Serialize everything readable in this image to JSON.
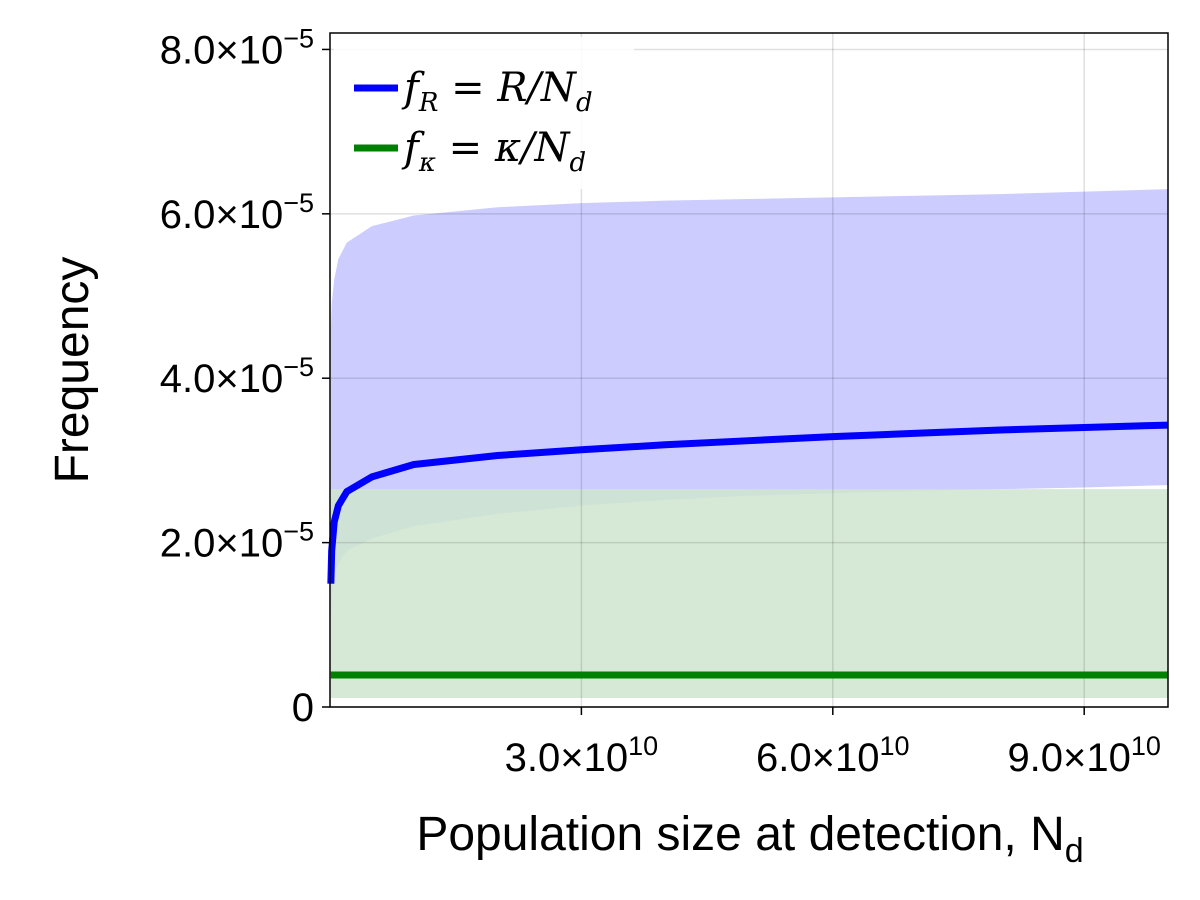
{
  "chart_data": {
    "type": "line",
    "xlabel": "Population size at detection, N",
    "xlabel_sub": "d",
    "ylabel": "Frequency",
    "xlim": [
      0,
      100000000000.0
    ],
    "ylim": [
      0,
      8.2e-05
    ],
    "grid": true,
    "legend_position": "top-left",
    "x_ticks": [
      {
        "value": 30000000000.0,
        "mant": "3.0×10",
        "exp": "10"
      },
      {
        "value": 60000000000.0,
        "mant": "6.0×10",
        "exp": "10"
      },
      {
        "value": 90000000000.0,
        "mant": "9.0×10",
        "exp": "10"
      }
    ],
    "y_ticks": [
      {
        "value": 0,
        "mant": "0",
        "exp": ""
      },
      {
        "value": 2e-05,
        "mant": "2.0×10",
        "exp": "−5"
      },
      {
        "value": 4e-05,
        "mant": "4.0×10",
        "exp": "−5"
      },
      {
        "value": 6e-05,
        "mant": "6.0×10",
        "exp": "−5"
      },
      {
        "value": 8e-05,
        "mant": "8.0×10",
        "exp": "−5"
      }
    ],
    "series": [
      {
        "name": "f_R = R/N_d",
        "label_main": "f",
        "label_sub": "R",
        "label_rest": " = R/N",
        "label_rest_sub": "d",
        "color": "#0000ff",
        "band_color": "#ccccff",
        "x": [
          100000000.0,
          200000000.0,
          500000000.0,
          1000000000.0,
          2000000000.0,
          5000000000.0,
          10000000000.0,
          20000000000.0,
          30000000000.0,
          40000000000.0,
          50000000000.0,
          60000000000.0,
          70000000000.0,
          80000000000.0,
          90000000000.0,
          100000000000.0
        ],
        "values": [
          1.5e-05,
          1.9e-05,
          2.25e-05,
          2.45e-05,
          2.62e-05,
          2.8e-05,
          2.95e-05,
          3.06e-05,
          3.13e-05,
          3.19e-05,
          3.24e-05,
          3.29e-05,
          3.33e-05,
          3.37e-05,
          3.4e-05,
          3.43e-05
        ],
        "lower": [
          1.1e-05,
          1.35e-05,
          1.6e-05,
          1.75e-05,
          1.9e-05,
          2.05e-05,
          2.2e-05,
          2.35e-05,
          2.45e-05,
          2.52e-05,
          2.57e-05,
          2.6e-05,
          2.63e-05,
          2.65e-05,
          2.67e-05,
          2.7e-05
        ],
        "upper": [
          4.6e-05,
          4.9e-05,
          5.2e-05,
          5.45e-05,
          5.65e-05,
          5.85e-05,
          5.98e-05,
          6.08e-05,
          6.13e-05,
          6.16e-05,
          6.18e-05,
          6.2e-05,
          6.22e-05,
          6.24e-05,
          6.27e-05,
          6.3e-05
        ]
      },
      {
        "name": "f_κ = κ/N_d",
        "label_main": "f",
        "label_sub": "κ",
        "label_rest": " = κ/N",
        "label_rest_sub": "d",
        "color": "#008000",
        "band_color": "#cfe5cf",
        "x": [
          100000000.0,
          100000000000.0
        ],
        "values": [
          3.9e-06,
          3.9e-06
        ],
        "lower": [
          1.1e-06,
          1.1e-06
        ],
        "upper": [
          2.65e-05,
          2.65e-05
        ]
      }
    ]
  }
}
